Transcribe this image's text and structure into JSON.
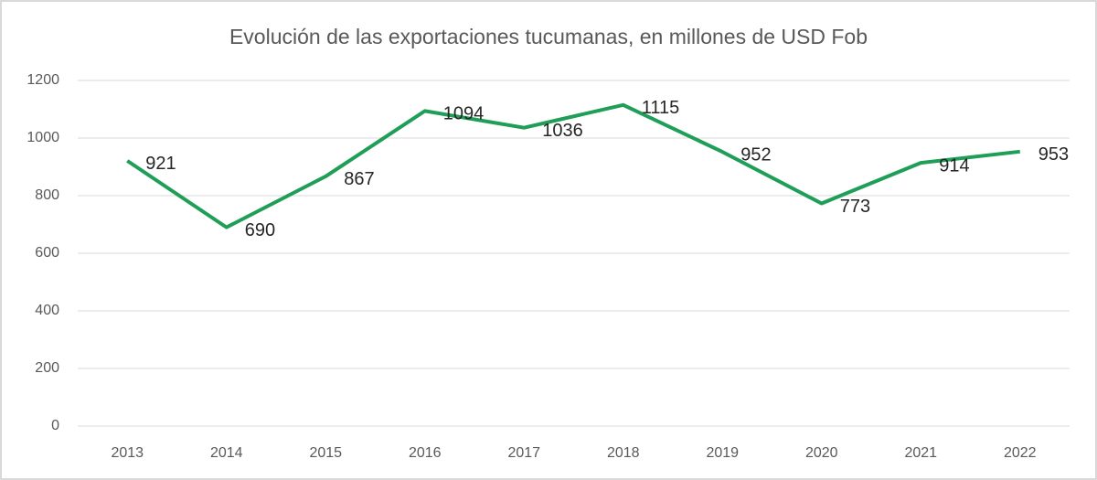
{
  "chart_data": {
    "type": "line",
    "title": "Evolución de las exportaciones tucumanas, en millones de USD Fob",
    "categories": [
      "2013",
      "2014",
      "2015",
      "2016",
      "2017",
      "2018",
      "2019",
      "2020",
      "2021",
      "2022"
    ],
    "values": [
      921,
      690,
      867,
      1094,
      1036,
      1115,
      952,
      773,
      914,
      953
    ],
    "color": "#1e9e57",
    "ylim": [
      0,
      1200
    ],
    "yticks": [
      0,
      200,
      400,
      600,
      800,
      1000,
      1200
    ],
    "grid": true
  }
}
